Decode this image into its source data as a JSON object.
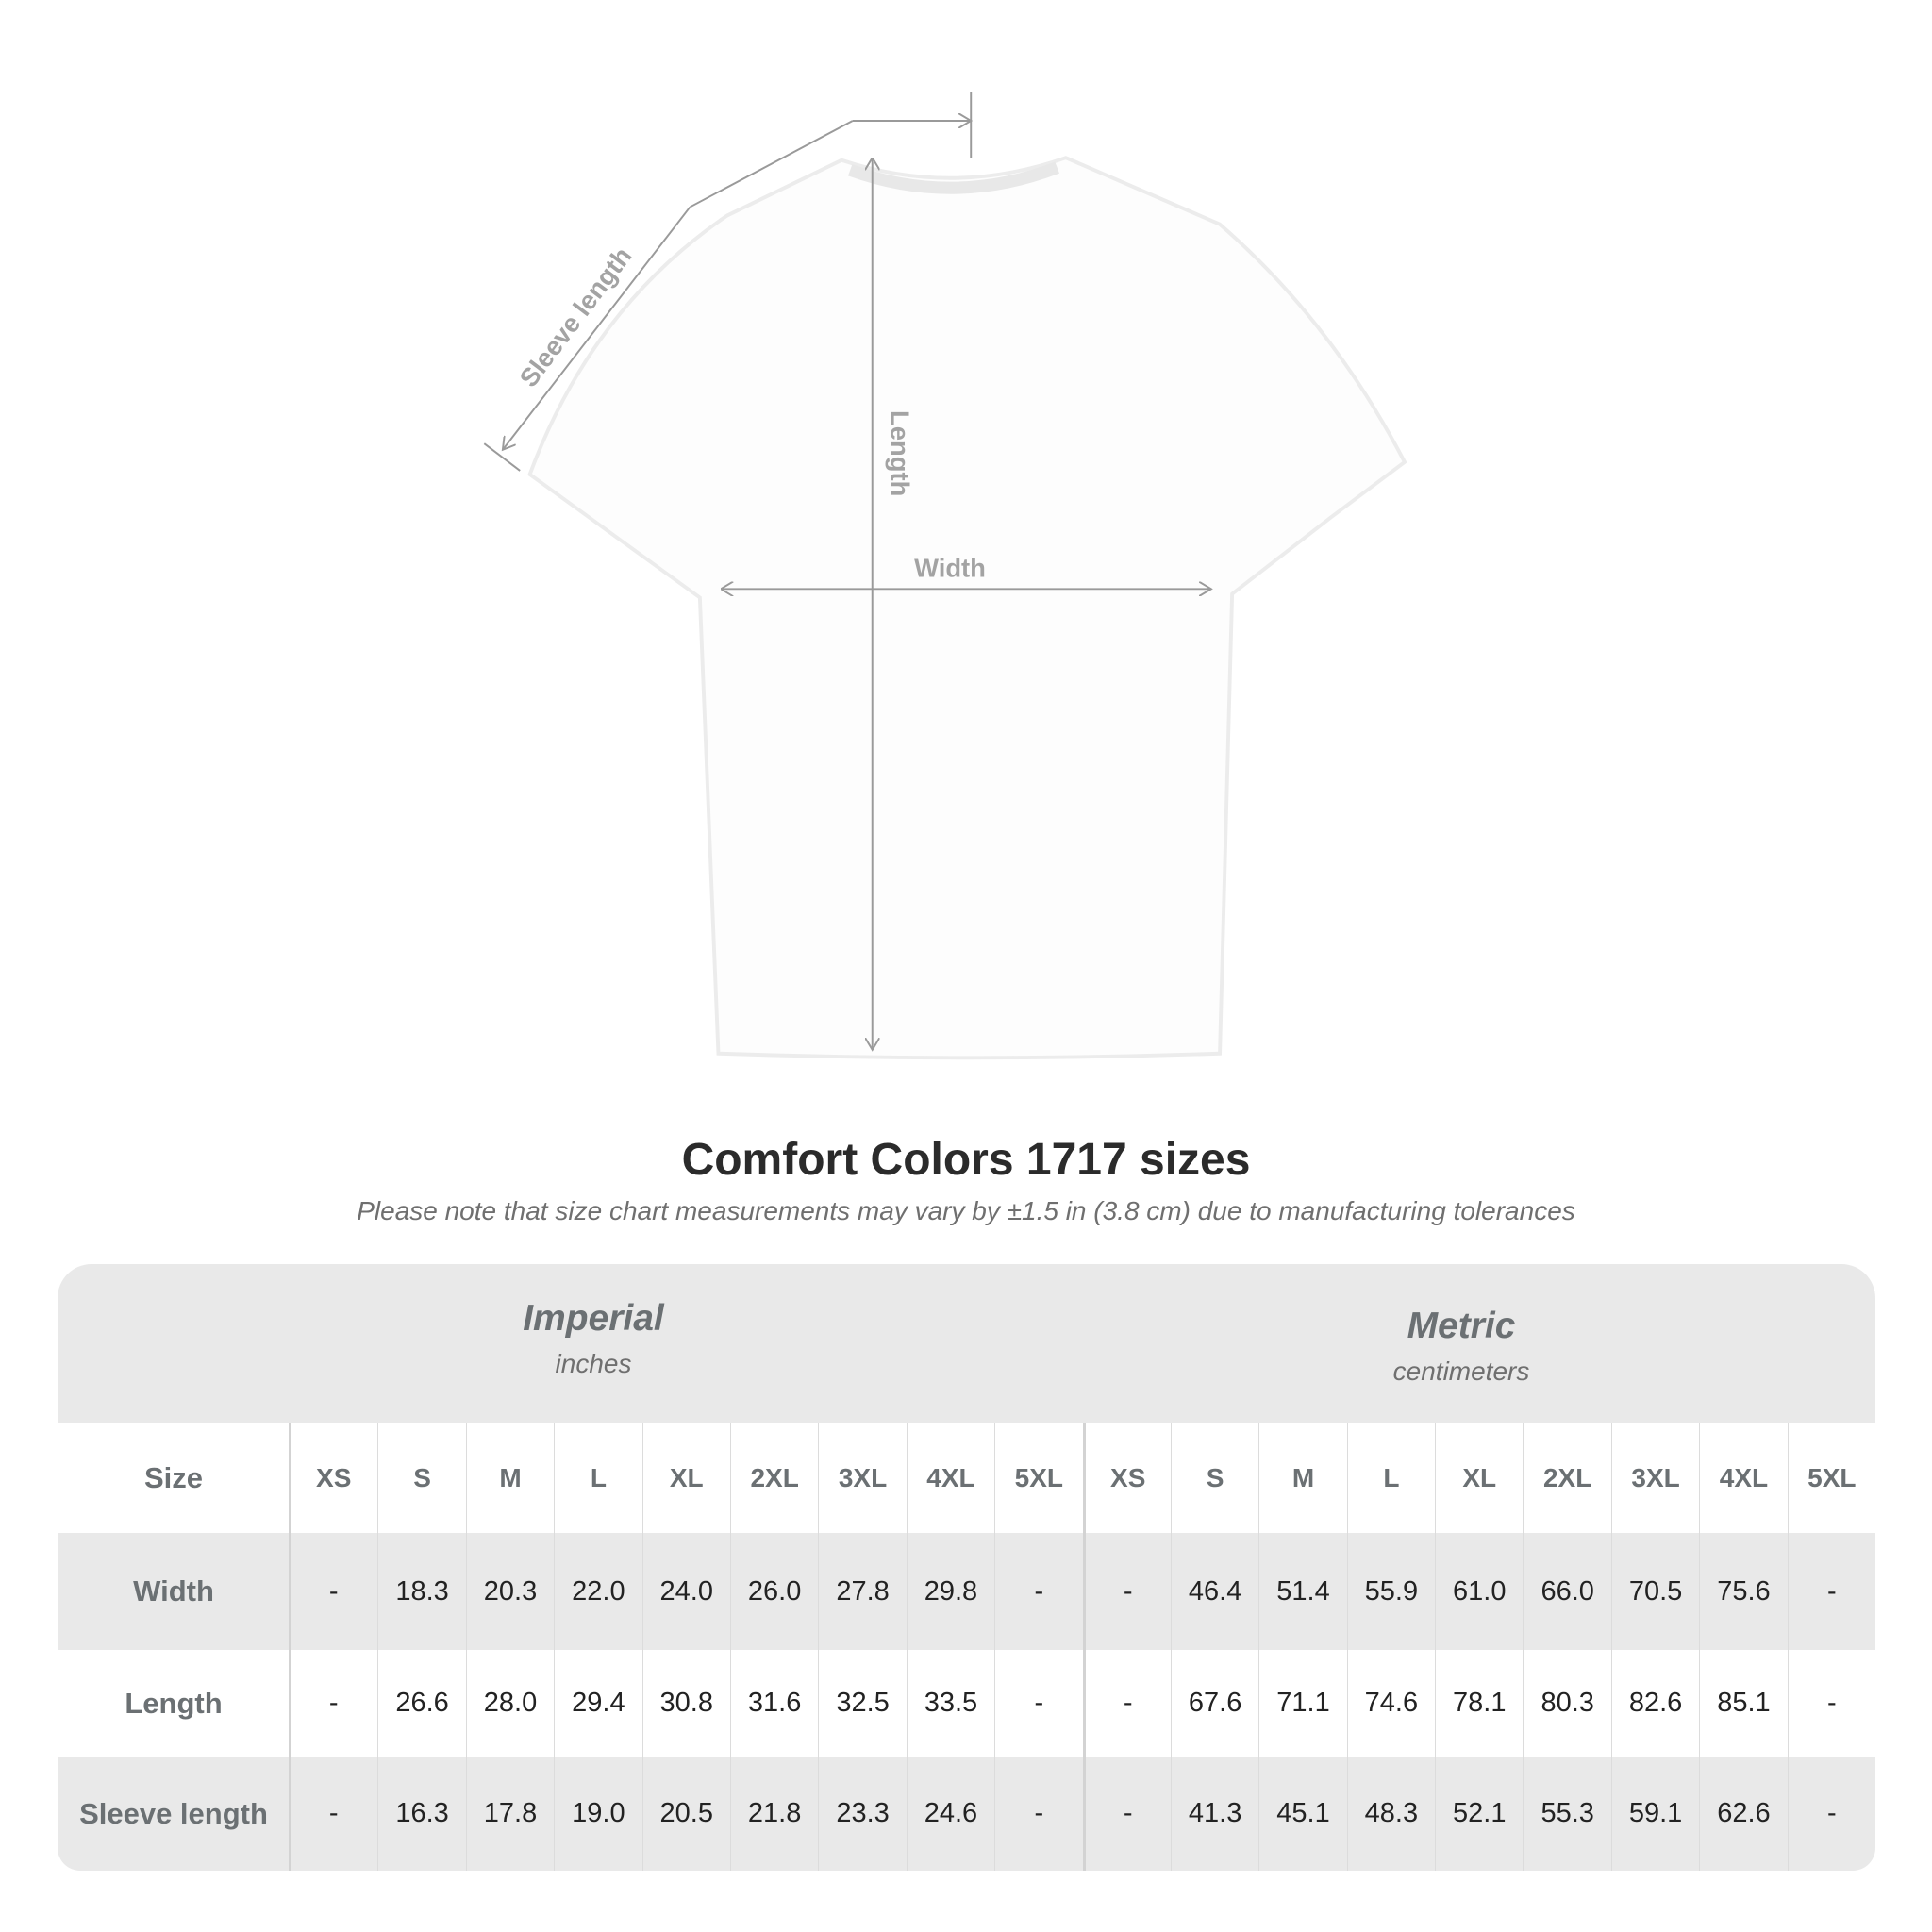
{
  "diagram": {
    "labels": {
      "sleeve": "Sleeve length",
      "length": "Length",
      "width": "Width"
    },
    "arrow_color": "#9a9a9a",
    "garment_color": "#ffffff"
  },
  "title": "Comfort Colors 1717 sizes",
  "subtitle": "Please note that size chart measurements may vary by ±1.5 in (3.8 cm) due to manufacturing tolerances",
  "table": {
    "imperial": {
      "name": "Imperial",
      "unit": "inches"
    },
    "metric": {
      "name": "Metric",
      "unit": "centimeters"
    },
    "size_label": "Size",
    "sizes": [
      "XS",
      "S",
      "M",
      "L",
      "XL",
      "2XL",
      "3XL",
      "4XL",
      "5XL"
    ],
    "rows": [
      {
        "label": "Width",
        "imperial": [
          "-",
          "18.3",
          "20.3",
          "22.0",
          "24.0",
          "26.0",
          "27.8",
          "29.8",
          "-"
        ],
        "metric": [
          "-",
          "46.4",
          "51.4",
          "55.9",
          "61.0",
          "66.0",
          "70.5",
          "75.6",
          "-"
        ]
      },
      {
        "label": "Length",
        "imperial": [
          "-",
          "26.6",
          "28.0",
          "29.4",
          "30.8",
          "31.6",
          "32.5",
          "33.5",
          "-"
        ],
        "metric": [
          "-",
          "67.6",
          "71.1",
          "74.6",
          "78.1",
          "80.3",
          "82.6",
          "85.1",
          "-"
        ]
      },
      {
        "label": "Sleeve length",
        "imperial": [
          "-",
          "16.3",
          "17.8",
          "19.0",
          "20.5",
          "21.8",
          "23.3",
          "24.6",
          "-"
        ],
        "metric": [
          "-",
          "41.3",
          "45.1",
          "48.3",
          "52.1",
          "55.3",
          "59.1",
          "62.6",
          "-"
        ]
      }
    ],
    "band_color": "#e9e9e9"
  }
}
